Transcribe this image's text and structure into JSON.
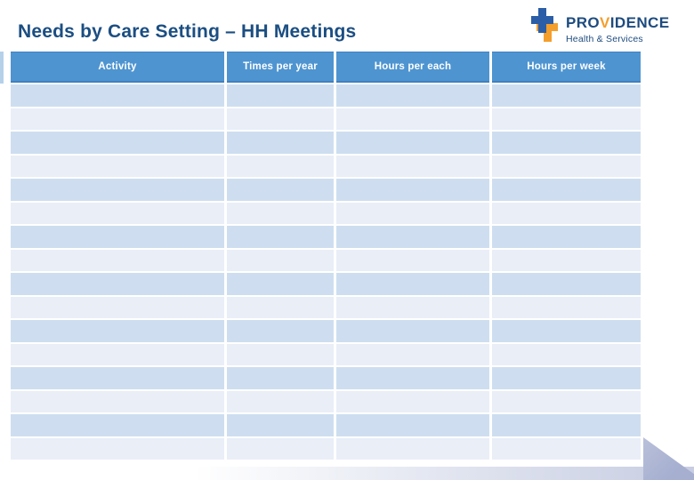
{
  "slide": {
    "title": "Needs by Care Setting – HH Meetings"
  },
  "logo": {
    "name": "Providence Health & Services",
    "text_pre": "PRO",
    "text_accent": "V",
    "text_post": "IDENCE",
    "subtitle": "Health & Services",
    "colors": {
      "blue": "#1d4b7f",
      "orange": "#f49e2c"
    }
  },
  "table": {
    "headers": [
      "Activity",
      "Times per year",
      "Hours per each",
      "Hours per week"
    ],
    "row_count": 16,
    "cells_empty": true,
    "colors": {
      "header_bg": "#4e94d0",
      "header_text": "#ffffff",
      "row_odd_bg": "#cedef0",
      "row_even_bg": "#e9eef7",
      "title_color": "#1b4e82"
    }
  },
  "decor": {
    "left_sliver_color": "#b5d1ea",
    "triangle_color": "#a6afd0",
    "band_end_color": "#c7cde2"
  }
}
